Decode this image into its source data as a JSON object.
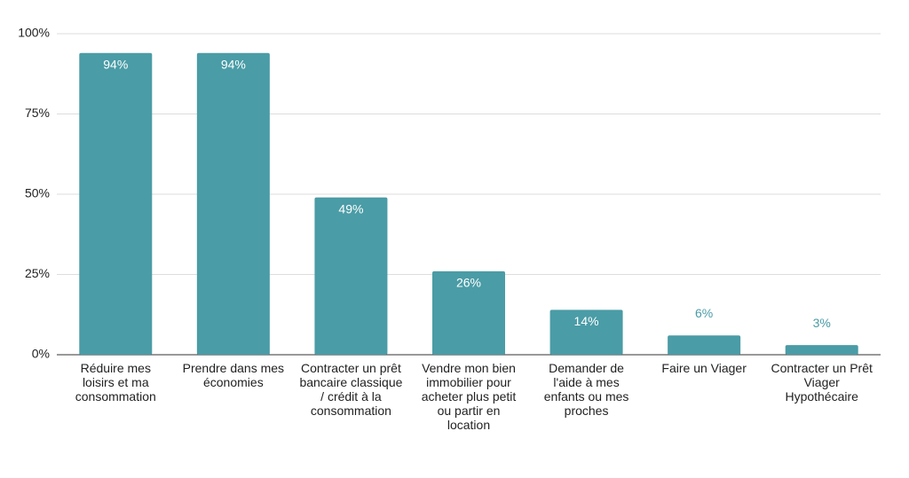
{
  "chart_data": {
    "type": "bar",
    "categories": [
      "Réduire mes loisirs et ma consommation",
      "Prendre dans mes économies",
      "Contracter un prêt bancaire classique / crédit à la consommation",
      "Vendre mon bien immobilier pour acheter plus petit ou partir en location",
      "Demander de l'aide à mes enfants ou mes proches",
      "Faire un Viager",
      "Contracter un Prêt Viager Hypothécaire"
    ],
    "values": [
      94,
      94,
      49,
      26,
      14,
      6,
      3
    ],
    "value_labels": [
      "94%",
      "94%",
      "49%",
      "26%",
      "14%",
      "6%",
      "3%"
    ],
    "color": "#4a9ca6",
    "ylim": [
      0,
      100
    ],
    "yticks": [
      {
        "value": 0,
        "label": "0%"
      },
      {
        "value": 25,
        "label": "25%"
      },
      {
        "value": 50,
        "label": "50%"
      },
      {
        "value": 75,
        "label": "75%"
      },
      {
        "value": 100,
        "label": "100%"
      }
    ],
    "grid": true
  }
}
